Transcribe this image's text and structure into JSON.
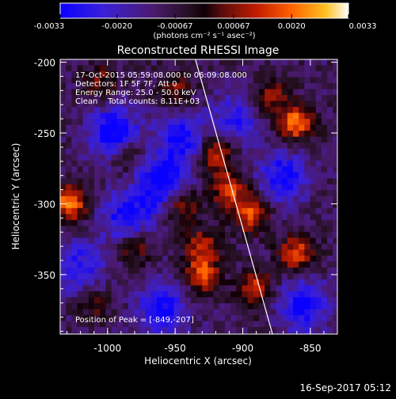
{
  "colorbar": {
    "tick_labels": [
      "-0.0033",
      "-0.0020",
      "-0.00067",
      "0.00067",
      "0.0020",
      "0.0033"
    ],
    "tick_values": [
      -0.0033,
      -0.002,
      -0.00067,
      0.00067,
      0.002,
      0.0033
    ],
    "range": [
      -0.0033,
      0.0033
    ],
    "unit_label": "(photons cm⁻² s⁻¹ asec⁻²)"
  },
  "chart_data": {
    "type": "heatmap",
    "title": "Reconstructed RHESSI Image",
    "xlabel": "Heliocentric X (arcsec)",
    "ylabel": "Heliocentric Y (arcsec)",
    "xlim": [
      -1035,
      -830
    ],
    "ylim": [
      -392,
      -198
    ],
    "x_ticks": [
      -1000,
      -950,
      -900,
      -850
    ],
    "x_tick_labels": [
      "-1000",
      "-950",
      "-900",
      "-850"
    ],
    "y_ticks": [
      -200,
      -250,
      -300,
      -350
    ],
    "y_tick_labels": [
      "-200",
      "-250",
      "-300",
      "-350"
    ],
    "grid": false,
    "annotations": [
      "17-Oct-2015 05:59:08.000 to 06:09:08.000",
      "Detectors: 1F 5F 7F, Att 0",
      "Energy Range: 25.0 - 50.0 keV",
      "Clean    Total counts: 8.11E+03"
    ],
    "peak_label": "Position of Peak = [-849,-207]",
    "limb_line": {
      "x": [
        -935,
        -878
      ],
      "y": [
        -198,
        -392
      ]
    },
    "bright_sources": [
      {
        "x": -1028,
        "y": -300,
        "value": 0.003
      },
      {
        "x": -860,
        "y": -243,
        "value": 0.0031
      },
      {
        "x": -860,
        "y": -335,
        "value": 0.0026
      },
      {
        "x": -895,
        "y": -307,
        "value": 0.0025
      },
      {
        "x": -920,
        "y": -265,
        "value": 0.0024
      },
      {
        "x": -910,
        "y": -290,
        "value": 0.0023
      },
      {
        "x": -930,
        "y": -350,
        "value": 0.0024
      },
      {
        "x": -980,
        "y": -330,
        "value": 0.0018
      },
      {
        "x": -945,
        "y": -300,
        "value": 0.002
      },
      {
        "x": -880,
        "y": -225,
        "value": 0.0018
      },
      {
        "x": -985,
        "y": -265,
        "value": 0.0016
      },
      {
        "x": -950,
        "y": -220,
        "value": 0.0015
      },
      {
        "x": -1005,
        "y": -215,
        "value": 0.0014
      },
      {
        "x": -1010,
        "y": -370,
        "value": 0.0012
      },
      {
        "x": -890,
        "y": -360,
        "value": 0.0022
      },
      {
        "x": -930,
        "y": -330,
        "value": 0.0019
      }
    ],
    "dark_regions": [
      {
        "x": -995,
        "y": -250,
        "value": -0.003
      },
      {
        "x": -960,
        "y": -285,
        "value": -0.0028
      },
      {
        "x": -985,
        "y": -310,
        "value": -0.0025
      },
      {
        "x": -945,
        "y": -255,
        "value": -0.0022
      },
      {
        "x": -960,
        "y": -375,
        "value": -0.0024
      },
      {
        "x": -870,
        "y": -280,
        "value": -0.0023
      },
      {
        "x": -855,
        "y": -372,
        "value": -0.0026
      },
      {
        "x": -1020,
        "y": -345,
        "value": -0.002
      },
      {
        "x": -905,
        "y": -240,
        "value": -0.0018
      }
    ]
  },
  "footer": {
    "timestamp": "16-Sep-2017 05:12"
  }
}
